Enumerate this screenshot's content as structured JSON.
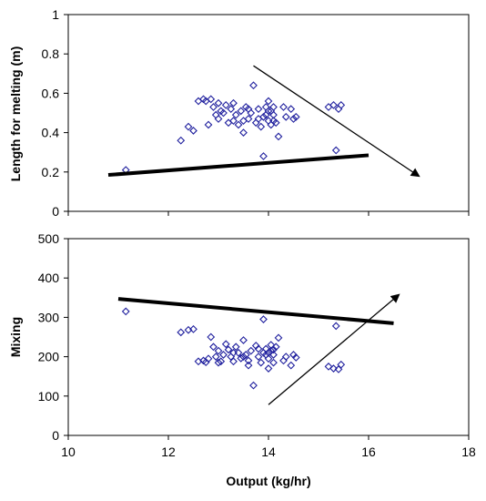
{
  "chart_data": [
    {
      "type": "scatter",
      "title": "",
      "xlabel": "",
      "ylabel": "Length for melting (m)",
      "xlim": [
        10,
        18
      ],
      "ylim": [
        0,
        1
      ],
      "xticks": [
        "10",
        "12",
        "14",
        "16",
        "18"
      ],
      "yticks": [
        "0",
        "0.2",
        "0.4",
        "0.6",
        "0.8",
        "1"
      ],
      "grid": false,
      "marker": "open-diamond",
      "marker_color": "#1f1f9e",
      "points": [
        [
          11.15,
          0.21
        ],
        [
          12.25,
          0.36
        ],
        [
          12.4,
          0.43
        ],
        [
          12.5,
          0.41
        ],
        [
          12.6,
          0.56
        ],
        [
          12.7,
          0.57
        ],
        [
          12.75,
          0.56
        ],
        [
          12.8,
          0.44
        ],
        [
          12.85,
          0.57
        ],
        [
          12.9,
          0.53
        ],
        [
          12.95,
          0.49
        ],
        [
          13.0,
          0.55
        ],
        [
          13.05,
          0.51
        ],
        [
          13.1,
          0.5
        ],
        [
          13.15,
          0.54
        ],
        [
          13.2,
          0.45
        ],
        [
          13.25,
          0.52
        ],
        [
          13.3,
          0.55
        ],
        [
          13.35,
          0.49
        ],
        [
          13.4,
          0.44
        ],
        [
          13.45,
          0.51
        ],
        [
          13.5,
          0.4
        ],
        [
          13.55,
          0.53
        ],
        [
          13.6,
          0.47
        ],
        [
          13.65,
          0.5
        ],
        [
          13.7,
          0.64
        ],
        [
          13.75,
          0.45
        ],
        [
          13.8,
          0.52
        ],
        [
          13.85,
          0.43
        ],
        [
          13.9,
          0.48
        ],
        [
          13.9,
          0.28
        ],
        [
          13.95,
          0.53
        ],
        [
          14.0,
          0.56
        ],
        [
          14.0,
          0.46
        ],
        [
          14.05,
          0.51
        ],
        [
          14.05,
          0.44
        ],
        [
          14.1,
          0.49
        ],
        [
          14.1,
          0.53
        ],
        [
          14.15,
          0.45
        ],
        [
          14.2,
          0.38
        ],
        [
          14.3,
          0.53
        ],
        [
          14.35,
          0.48
        ],
        [
          14.45,
          0.52
        ],
        [
          14.5,
          0.47
        ],
        [
          14.55,
          0.48
        ],
        [
          15.2,
          0.53
        ],
        [
          15.3,
          0.54
        ],
        [
          15.35,
          0.31
        ],
        [
          15.4,
          0.52
        ],
        [
          15.45,
          0.54
        ],
        [
          13.0,
          0.47
        ],
        [
          13.3,
          0.46
        ],
        [
          13.6,
          0.52
        ],
        [
          13.8,
          0.47
        ],
        [
          13.95,
          0.49
        ],
        [
          14.0,
          0.51
        ],
        [
          13.5,
          0.46
        ],
        [
          14.1,
          0.46
        ]
      ],
      "trend_line": {
        "x": [
          10.8,
          16.0
        ],
        "y": [
          0.185,
          0.285
        ]
      },
      "arrow": {
        "from": [
          13.7,
          0.74
        ],
        "to": [
          17.0,
          0.18
        ]
      }
    },
    {
      "type": "scatter",
      "title": "",
      "xlabel": "Output (kg/hr)",
      "ylabel": "Mixing",
      "xlim": [
        10,
        18
      ],
      "ylim": [
        0,
        500
      ],
      "xticks": [
        "10",
        "12",
        "14",
        "16",
        "18"
      ],
      "yticks": [
        "0",
        "100",
        "200",
        "300",
        "400",
        "500"
      ],
      "grid": false,
      "marker": "open-diamond",
      "marker_color": "#1f1f9e",
      "points": [
        [
          11.15,
          315
        ],
        [
          12.25,
          262
        ],
        [
          12.4,
          268
        ],
        [
          12.5,
          270
        ],
        [
          12.6,
          188
        ],
        [
          12.7,
          190
        ],
        [
          12.75,
          186
        ],
        [
          12.8,
          195
        ],
        [
          12.85,
          250
        ],
        [
          12.9,
          225
        ],
        [
          12.95,
          200
        ],
        [
          13.0,
          215
        ],
        [
          13.05,
          188
        ],
        [
          13.1,
          205
        ],
        [
          13.15,
          232
        ],
        [
          13.2,
          218
        ],
        [
          13.25,
          200
        ],
        [
          13.3,
          188
        ],
        [
          13.35,
          225
        ],
        [
          13.4,
          210
        ],
        [
          13.45,
          196
        ],
        [
          13.5,
          242
        ],
        [
          13.55,
          205
        ],
        [
          13.6,
          190
        ],
        [
          13.65,
          215
        ],
        [
          13.7,
          127
        ],
        [
          13.75,
          228
        ],
        [
          13.8,
          200
        ],
        [
          13.85,
          185
        ],
        [
          13.9,
          210
        ],
        [
          13.9,
          295
        ],
        [
          13.95,
          220
        ],
        [
          14.0,
          170
        ],
        [
          14.0,
          195
        ],
        [
          14.05,
          215
        ],
        [
          14.05,
          230
        ],
        [
          14.1,
          185
        ],
        [
          14.1,
          205
        ],
        [
          14.15,
          225
        ],
        [
          14.2,
          248
        ],
        [
          14.3,
          190
        ],
        [
          14.35,
          200
        ],
        [
          14.45,
          178
        ],
        [
          14.5,
          205
        ],
        [
          14.55,
          198
        ],
        [
          15.2,
          175
        ],
        [
          15.3,
          170
        ],
        [
          15.35,
          278
        ],
        [
          15.4,
          168
        ],
        [
          15.45,
          180
        ],
        [
          13.0,
          185
        ],
        [
          13.3,
          210
        ],
        [
          13.6,
          178
        ],
        [
          13.8,
          220
        ],
        [
          13.95,
          205
        ],
        [
          14.0,
          210
        ],
        [
          13.5,
          200
        ],
        [
          14.1,
          218
        ]
      ],
      "trend_line": {
        "x": [
          11.0,
          16.5
        ],
        "y": [
          347,
          285
        ]
      },
      "arrow": {
        "from": [
          14.0,
          78
        ],
        "to": [
          16.6,
          357
        ]
      }
    }
  ]
}
